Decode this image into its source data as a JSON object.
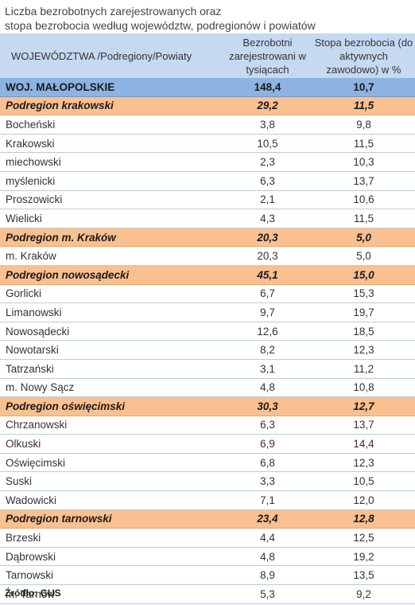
{
  "title": {
    "line1": "Liczba bezrobotnych zarejestrowanych oraz",
    "line2": "stopa bezrobocia według województw, podregionów  i  powiatów"
  },
  "header": {
    "col1": "WOJEWÓDZTWA /Podregiony/Powiaty",
    "col2": "Bezrobotni zarejestrowani w tysiącach",
    "col3": "Stopa bezrobocia (do aktywnych zawodowo) w %"
  },
  "rows": [
    {
      "type": "woj",
      "name": "WOJ. MAŁOPOLSKIE",
      "unemployed": "148,4",
      "rate": "10,7"
    },
    {
      "type": "sub",
      "name": "Podregion krakowski",
      "unemployed": "29,2",
      "rate": "11,5"
    },
    {
      "type": "pow",
      "name": "Bocheński",
      "unemployed": "3,8",
      "rate": "9,8"
    },
    {
      "type": "pow",
      "name": "Krakowski",
      "unemployed": "10,5",
      "rate": "11,5"
    },
    {
      "type": "pow",
      "name": "miechowski",
      "unemployed": "2,3",
      "rate": "10,3"
    },
    {
      "type": "pow",
      "name": "myślenicki",
      "unemployed": "6,3",
      "rate": "13,7"
    },
    {
      "type": "pow",
      "name": "Proszowicki",
      "unemployed": "2,1",
      "rate": "10,6"
    },
    {
      "type": "pow",
      "name": "Wielicki",
      "unemployed": "4,3",
      "rate": "11,5"
    },
    {
      "type": "sub",
      "name": "Podregion m. Kraków",
      "unemployed": "20,3",
      "rate": "5,0"
    },
    {
      "type": "pow",
      "name": "m. Kraków",
      "unemployed": "20,3",
      "rate": "5,0"
    },
    {
      "type": "sub",
      "name": "Podregion nowosądecki",
      "unemployed": "45,1",
      "rate": "15,0"
    },
    {
      "type": "pow",
      "name": "Gorlicki",
      "unemployed": "6,7",
      "rate": "15,3"
    },
    {
      "type": "pow",
      "name": "Limanowski",
      "unemployed": "9,7",
      "rate": "19,7"
    },
    {
      "type": "pow",
      "name": "Nowosądecki",
      "unemployed": "12,6",
      "rate": "18,5"
    },
    {
      "type": "pow",
      "name": "Nowotarski",
      "unemployed": "8,2",
      "rate": "12,3"
    },
    {
      "type": "pow",
      "name": "Tatrzański",
      "unemployed": "3,1",
      "rate": "11,2"
    },
    {
      "type": "pow",
      "name": "m. Nowy Sącz",
      "unemployed": "4,8",
      "rate": "10,8"
    },
    {
      "type": "sub",
      "name": "Podregion oświęcimski",
      "unemployed": "30,3",
      "rate": "12,7"
    },
    {
      "type": "pow",
      "name": "Chrzanowski",
      "unemployed": "6,3",
      "rate": "13,7"
    },
    {
      "type": "pow",
      "name": "Olkuski",
      "unemployed": "6,9",
      "rate": "14,4"
    },
    {
      "type": "pow",
      "name": "Oświęcimski",
      "unemployed": "6,8",
      "rate": "12,3"
    },
    {
      "type": "pow",
      "name": "Suski",
      "unemployed": "3,3",
      "rate": "10,5"
    },
    {
      "type": "pow",
      "name": "Wadowicki",
      "unemployed": "7,1",
      "rate": "12,0"
    },
    {
      "type": "sub",
      "name": "Podregion tarnowski",
      "unemployed": "23,4",
      "rate": "12,8"
    },
    {
      "type": "pow",
      "name": "Brzeski",
      "unemployed": "4,4",
      "rate": "12,5"
    },
    {
      "type": "pow",
      "name": "Dąbrowski",
      "unemployed": "4,8",
      "rate": "19,2"
    },
    {
      "type": "pow",
      "name": "Tarnowski",
      "unemployed": "8,9",
      "rate": "13,5"
    },
    {
      "type": "pow",
      "name": "m. Tarnów",
      "unemployed": "5,3",
      "rate": "9,2"
    }
  ],
  "source": "Źródło: GUS",
  "colors": {
    "header_bg": "#c5d9f1",
    "voivodeship_bg": "#8db3e2",
    "subregion_bg": "#fac090"
  }
}
